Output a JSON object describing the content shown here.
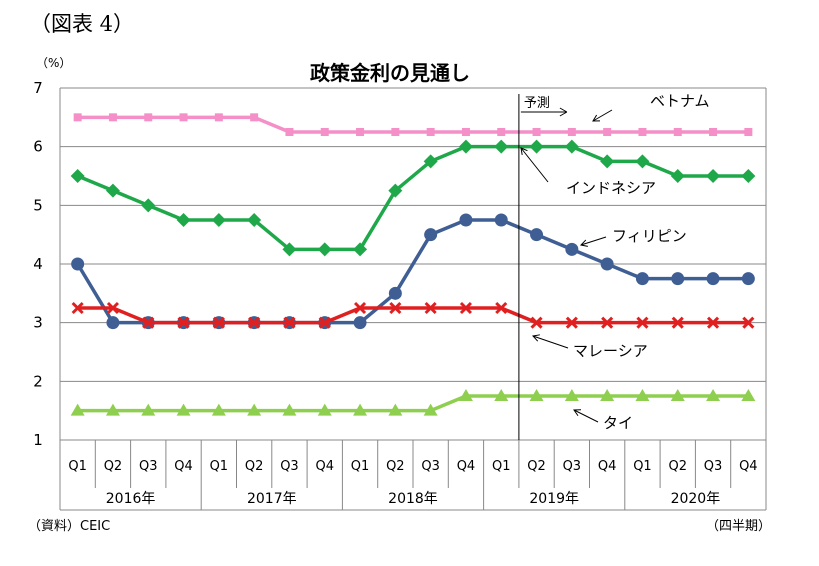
{
  "figure_label": "（図表 4）",
  "unit": "（%）",
  "source": "（資料）CEIC",
  "period_note": "（四半期）",
  "forecast_label": "予測",
  "chart_data": {
    "type": "line",
    "title": "政策金利の見通し",
    "categories": [
      "Q1",
      "Q2",
      "Q3",
      "Q4",
      "Q1",
      "Q2",
      "Q3",
      "Q4",
      "Q1",
      "Q2",
      "Q3",
      "Q4",
      "Q1",
      "Q2",
      "Q3",
      "Q4",
      "Q1",
      "Q2",
      "Q3",
      "Q4"
    ],
    "years": [
      "2016年",
      "2017年",
      "2018年",
      "2019年",
      "2020年"
    ],
    "ylim": [
      1,
      7
    ],
    "yticks": [
      "1",
      "2",
      "3",
      "4",
      "5",
      "6",
      "7"
    ],
    "grid": true,
    "forecast_start_index": 12.5,
    "series": [
      {
        "name": "ベトナム",
        "color": "#f48fc8",
        "marker": "square",
        "values": [
          6.5,
          6.5,
          6.5,
          6.5,
          6.5,
          6.5,
          6.25,
          6.25,
          6.25,
          6.25,
          6.25,
          6.25,
          6.25,
          6.25,
          6.25,
          6.25,
          6.25,
          6.25,
          6.25,
          6.25
        ]
      },
      {
        "name": "インドネシア",
        "color": "#1fa84a",
        "marker": "diamond",
        "values": [
          5.5,
          5.25,
          5.0,
          4.75,
          4.75,
          4.75,
          4.25,
          4.25,
          4.25,
          5.25,
          5.75,
          6.0,
          6.0,
          6.0,
          6.0,
          5.75,
          5.75,
          5.5,
          5.5,
          5.5
        ]
      },
      {
        "name": "フィリピン",
        "color": "#3f5e94",
        "marker": "circle",
        "values": [
          4.0,
          3.0,
          3.0,
          3.0,
          3.0,
          3.0,
          3.0,
          3.0,
          3.0,
          3.5,
          4.5,
          4.75,
          4.75,
          4.5,
          4.25,
          4.0,
          3.75,
          3.75,
          3.75,
          3.75
        ]
      },
      {
        "name": "マレーシア",
        "color": "#e02020",
        "marker": "x",
        "values": [
          3.25,
          3.25,
          3.0,
          3.0,
          3.0,
          3.0,
          3.0,
          3.0,
          3.25,
          3.25,
          3.25,
          3.25,
          3.25,
          3.0,
          3.0,
          3.0,
          3.0,
          3.0,
          3.0,
          3.0
        ]
      },
      {
        "name": "タイ",
        "color": "#8fcf4f",
        "marker": "triangle",
        "values": [
          1.5,
          1.5,
          1.5,
          1.5,
          1.5,
          1.5,
          1.5,
          1.5,
          1.5,
          1.5,
          1.5,
          1.75,
          1.75,
          1.75,
          1.75,
          1.75,
          1.75,
          1.75,
          1.75,
          1.75
        ]
      }
    ]
  }
}
